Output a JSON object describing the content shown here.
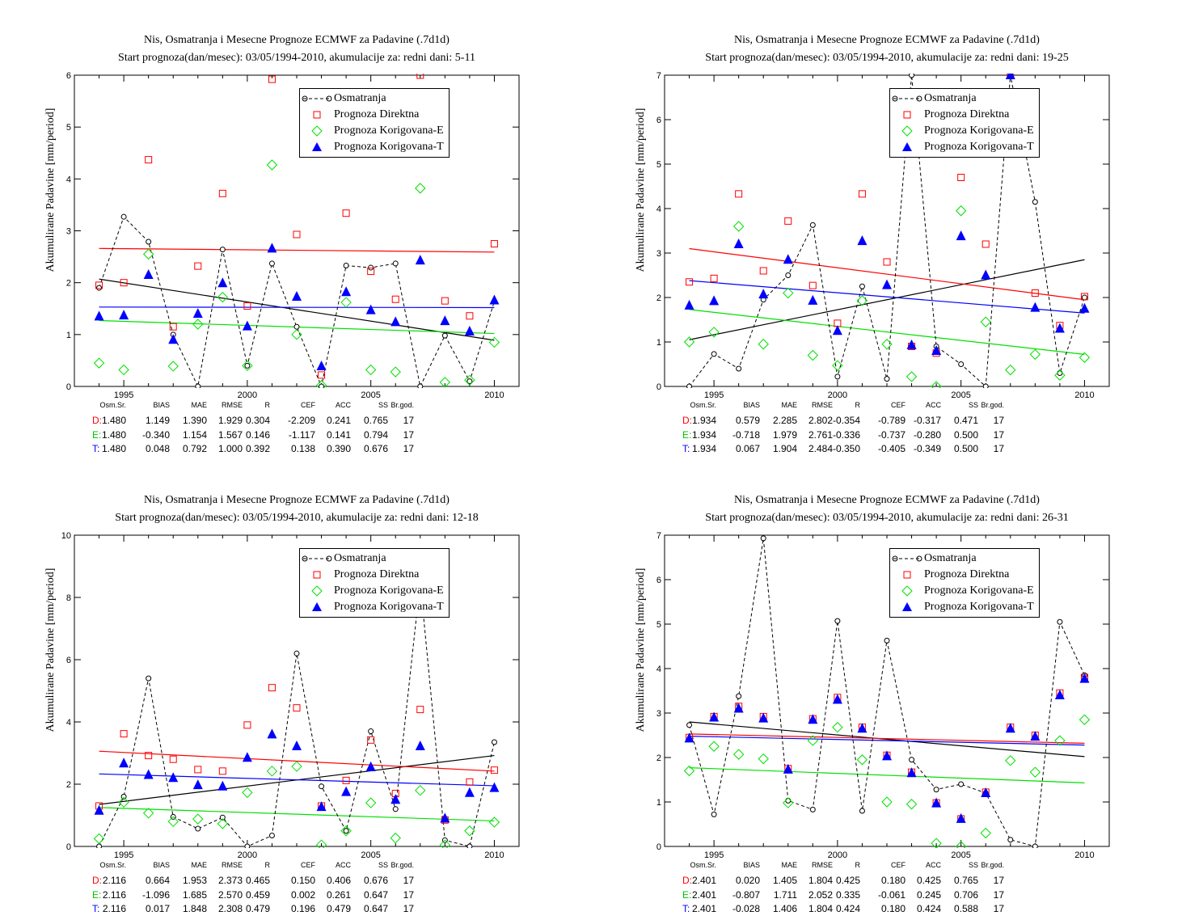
{
  "colors": {
    "obs": "#000000",
    "direct": "#ff0000",
    "corrE": "#00e000",
    "corrT": "#0000ff"
  },
  "legend": [
    "Osmatranja",
    "Prognoza Direktna",
    "Prognoza Korigovana-E",
    "Prognoza Korigovana-T"
  ],
  "stats_headers": [
    "Osm.Sr.",
    "BIAS",
    "MAE",
    "RMSE",
    "R",
    "CEF",
    "ACC",
    "SS",
    "Br.god."
  ],
  "stats_row_labels": [
    "D:",
    "E:",
    "T:"
  ],
  "panels": [
    {
      "title1": "Nis, Osmatranja i Mesecne Prognoze ECMWF za Padavine (.7d1d)",
      "title2": "Start prognoza(dan/mesec): 03/05/1994-2010, akumulacije za: redni dani: 5-11",
      "ylabel": "Akumulirane Padavine [mm/period]",
      "stats": [
        [
          "1.480",
          "1.149",
          "1.390",
          "1.929",
          "0.304",
          "-2.209",
          "0.241",
          "0.765",
          "17"
        ],
        [
          "1.480",
          "-0.340",
          "1.154",
          "1.567",
          "0.146",
          "-1.117",
          "0.141",
          "0.794",
          "17"
        ],
        [
          "1.480",
          "0.048",
          "0.792",
          "1.000",
          "0.392",
          "0.138",
          "0.390",
          "0.676",
          "17"
        ]
      ]
    },
    {
      "title1": "Nis, Osmatranja i Mesecne Prognoze ECMWF za Padavine (.7d1d)",
      "title2": "Start prognoza(dan/mesec): 03/05/1994-2010, akumulacije za: redni dani: 19-25",
      "ylabel": "Akumulirane Padavine [mm/period]",
      "stats": [
        [
          "1.934",
          "0.579",
          "2.285",
          "2.802",
          "-0.354",
          "-0.789",
          "-0.317",
          "0.471",
          "17"
        ],
        [
          "1.934",
          "-0.718",
          "1.979",
          "2.761",
          "-0.336",
          "-0.737",
          "-0.280",
          "0.500",
          "17"
        ],
        [
          "1.934",
          "0.067",
          "1.904",
          "2.484",
          "-0.350",
          "-0.405",
          "-0.349",
          "0.500",
          "17"
        ]
      ]
    },
    {
      "title1": "Nis, Osmatranja i Mesecne Prognoze ECMWF za Padavine (.7d1d)",
      "title2": "Start prognoza(dan/mesec): 03/05/1994-2010, akumulacije za: redni dani: 12-18",
      "ylabel": "Akumulirane Padavine [mm/period]",
      "stats": [
        [
          "2.116",
          "0.664",
          "1.953",
          "2.373",
          "0.465",
          "0.150",
          "0.406",
          "0.676",
          "17"
        ],
        [
          "2.116",
          "-1.096",
          "1.685",
          "2.570",
          "0.459",
          "0.002",
          "0.261",
          "0.647",
          "17"
        ],
        [
          "2.116",
          "0.017",
          "1.848",
          "2.308",
          "0.479",
          "0.196",
          "0.479",
          "0.647",
          "17"
        ]
      ]
    },
    {
      "title1": "Nis, Osmatranja i Mesecne Prognoze ECMWF za Padavine (.7d1d)",
      "title2": "Start prognoza(dan/mesec): 03/05/1994-2010, akumulacije za: redni dani: 26-31",
      "ylabel": "Akumulirane Padavine [mm/period]",
      "stats": [
        [
          "2.401",
          "0.020",
          "1.405",
          "1.804",
          "0.425",
          "0.180",
          "0.425",
          "0.765",
          "17"
        ],
        [
          "2.401",
          "-0.807",
          "1.711",
          "2.052",
          "0.335",
          "-0.061",
          "0.245",
          "0.706",
          "17"
        ],
        [
          "2.401",
          "-0.028",
          "1.406",
          "1.804",
          "0.424",
          "0.180",
          "0.424",
          "0.588",
          "17"
        ]
      ]
    }
  ],
  "chart_data": [
    {
      "type": "scatter",
      "x": [
        1994,
        1995,
        1996,
        1997,
        1998,
        1999,
        2000,
        2001,
        2002,
        2003,
        2004,
        2005,
        2006,
        2007,
        2008,
        2009,
        2010
      ],
      "xlim": [
        1993,
        2011
      ],
      "ylim": [
        0,
        6
      ],
      "yticks": [
        0,
        1,
        2,
        3,
        4,
        5,
        6
      ],
      "xticks": [
        1995,
        2000,
        2005,
        2010
      ],
      "series": [
        {
          "name": "Osmatranja",
          "style": "obs",
          "values": [
            1.9,
            3.27,
            2.79,
            1.0,
            0,
            2.64,
            0.4,
            2.37,
            1.15,
            0,
            2.33,
            2.29,
            2.37,
            0,
            0.98,
            0.1,
            1.64
          ]
        },
        {
          "name": "Prognoza Direktna",
          "style": "direct",
          "values": [
            1.95,
            2.0,
            4.37,
            1.15,
            2.32,
            3.72,
            1.55,
            5.92,
            2.93,
            0.22,
            3.34,
            2.22,
            1.68,
            6.1,
            1.65,
            1.36,
            2.75
          ]
        },
        {
          "name": "Prognoza Korigovana-E",
          "style": "corrE",
          "values": [
            0.45,
            0.32,
            2.55,
            0.39,
            1.2,
            1.72,
            0.4,
            4.27,
            1.0,
            0.02,
            1.62,
            0.32,
            0.28,
            3.82,
            0.08,
            0.12,
            0.85
          ]
        },
        {
          "name": "Prognoza Korigovana-T",
          "style": "corrT",
          "values": [
            1.35,
            1.37,
            2.15,
            0.9,
            1.4,
            1.99,
            1.16,
            2.66,
            1.73,
            0.39,
            1.82,
            1.47,
            1.24,
            2.43,
            1.26,
            1.06,
            1.66
          ]
        }
      ],
      "trends": {
        "obs": [
          2.07,
          0.89
        ],
        "direct": [
          2.66,
          2.59
        ],
        "corrE": [
          1.27,
          1.02
        ],
        "corrT": [
          1.53,
          1.52
        ]
      }
    },
    {
      "type": "scatter",
      "x": [
        1994,
        1995,
        1996,
        1997,
        1998,
        1999,
        2000,
        2001,
        2002,
        2003,
        2004,
        2005,
        2006,
        2007,
        2008,
        2009,
        2010
      ],
      "xlim": [
        1993,
        2011
      ],
      "ylim": [
        0,
        7
      ],
      "yticks": [
        0,
        1,
        2,
        3,
        4,
        5,
        6,
        7
      ],
      "xticks": [
        1995,
        2000,
        2005,
        2010
      ],
      "series": [
        {
          "name": "Osmatranja",
          "style": "obs",
          "values": [
            0,
            0.73,
            0.4,
            1.95,
            2.5,
            3.63,
            0.22,
            2.25,
            0.17,
            7.5,
            0.9,
            0.5,
            0,
            7.5,
            4.15,
            0.3,
            2.0
          ]
        },
        {
          "name": "Prognoza Direktna",
          "style": "direct",
          "values": [
            2.35,
            2.43,
            4.33,
            2.6,
            3.72,
            2.27,
            1.42,
            4.33,
            2.8,
            0.9,
            0.75,
            4.7,
            3.2,
            7.5,
            2.1,
            1.37,
            2.02
          ]
        },
        {
          "name": "Prognoza Korigovana-E",
          "style": "corrE",
          "values": [
            1.0,
            1.22,
            3.6,
            0.95,
            2.1,
            0.7,
            0.47,
            1.93,
            0.95,
            0.22,
            0,
            3.95,
            1.45,
            0.37,
            0.72,
            0.25,
            0.65
          ]
        },
        {
          "name": "Prognoza Korigovana-T",
          "style": "corrT",
          "values": [
            1.82,
            1.92,
            3.2,
            2.07,
            2.85,
            1.93,
            1.25,
            3.27,
            2.28,
            0.93,
            0.8,
            3.38,
            2.5,
            7.5,
            1.77,
            1.3,
            1.75
          ]
        }
      ],
      "trends": {
        "obs": [
          1.05,
          2.85
        ],
        "direct": [
          3.1,
          1.95
        ],
        "corrE": [
          1.73,
          0.72
        ],
        "corrT": [
          2.38,
          1.65
        ]
      }
    },
    {
      "type": "scatter",
      "x": [
        1994,
        1995,
        1996,
        1997,
        1998,
        1999,
        2000,
        2001,
        2002,
        2003,
        2004,
        2005,
        2006,
        2007,
        2008,
        2009,
        2010
      ],
      "xlim": [
        1993,
        2011
      ],
      "ylim": [
        0,
        10
      ],
      "yticks": [
        0,
        2,
        4,
        6,
        8,
        10
      ],
      "xticks": [
        1995,
        2000,
        2005,
        2010
      ],
      "series": [
        {
          "name": "Osmatranja",
          "style": "obs",
          "values": [
            0,
            1.6,
            5.4,
            0.95,
            0.57,
            0.93,
            0,
            0.35,
            6.2,
            1.93,
            0.5,
            3.7,
            1.2,
            8.5,
            0.2,
            0,
            3.35
          ]
        },
        {
          "name": "Prognoza Direktna",
          "style": "direct",
          "values": [
            1.3,
            3.62,
            2.92,
            2.8,
            2.47,
            2.42,
            3.9,
            5.1,
            4.45,
            1.3,
            2.12,
            3.42,
            1.7,
            4.4,
            0.85,
            2.07,
            2.45
          ]
        },
        {
          "name": "Prognoza Korigovana-E",
          "style": "corrE",
          "values": [
            0.25,
            1.42,
            1.07,
            0.8,
            0.88,
            0.73,
            1.73,
            2.42,
            2.57,
            0.05,
            0.5,
            1.4,
            0.27,
            1.8,
            0.05,
            0.5,
            0.78
          ]
        },
        {
          "name": "Prognoza Korigovana-T",
          "style": "corrT",
          "values": [
            1.15,
            2.67,
            2.3,
            2.2,
            1.97,
            1.93,
            2.85,
            3.6,
            3.22,
            1.27,
            1.75,
            2.55,
            1.5,
            3.22,
            0.9,
            1.72,
            1.88
          ]
        }
      ],
      "trends": {
        "obs": [
          1.35,
          2.92
        ],
        "direct": [
          3.06,
          2.42
        ],
        "corrE": [
          1.25,
          0.82
        ],
        "corrT": [
          2.33,
          1.95
        ]
      }
    },
    {
      "type": "scatter",
      "x": [
        1994,
        1995,
        1996,
        1997,
        1998,
        1999,
        2000,
        2001,
        2002,
        2003,
        2004,
        2005,
        2006,
        2007,
        2008,
        2009,
        2010
      ],
      "xlim": [
        1993,
        2011
      ],
      "ylim": [
        0,
        7
      ],
      "yticks": [
        0,
        1,
        2,
        3,
        4,
        5,
        6,
        7
      ],
      "xticks": [
        1995,
        2000,
        2005,
        2010
      ],
      "series": [
        {
          "name": "Osmatranja",
          "style": "obs",
          "values": [
            2.73,
            0.72,
            3.38,
            6.93,
            1.03,
            0.83,
            5.07,
            0.8,
            4.63,
            1.95,
            1.28,
            1.4,
            1.2,
            0.15,
            0,
            5.05,
            3.85
          ]
        },
        {
          "name": "Prognoza Direktna",
          "style": "direct",
          "values": [
            2.45,
            2.92,
            3.15,
            2.92,
            1.75,
            2.87,
            3.35,
            2.68,
            2.05,
            1.67,
            0.98,
            0.62,
            1.22,
            2.68,
            2.5,
            3.45,
            3.8
          ]
        },
        {
          "name": "Prognoza Korigovana-E",
          "style": "corrE",
          "values": [
            1.7,
            2.25,
            2.07,
            1.97,
            0.98,
            2.38,
            2.68,
            1.95,
            1.0,
            0.95,
            0.07,
            0,
            0.3,
            1.93,
            1.67,
            2.38,
            2.85
          ]
        },
        {
          "name": "Prognoza Korigovana-T",
          "style": "corrT",
          "values": [
            2.43,
            2.9,
            3.1,
            2.88,
            1.73,
            2.85,
            3.3,
            2.65,
            2.03,
            1.65,
            0.97,
            0.62,
            1.2,
            2.65,
            2.47,
            3.4,
            3.77
          ]
        }
      ],
      "trends": {
        "obs": [
          2.8,
          2.02
        ],
        "direct": [
          2.53,
          2.32
        ],
        "corrE": [
          1.77,
          1.43
        ],
        "corrT": [
          2.48,
          2.28
        ]
      }
    }
  ]
}
